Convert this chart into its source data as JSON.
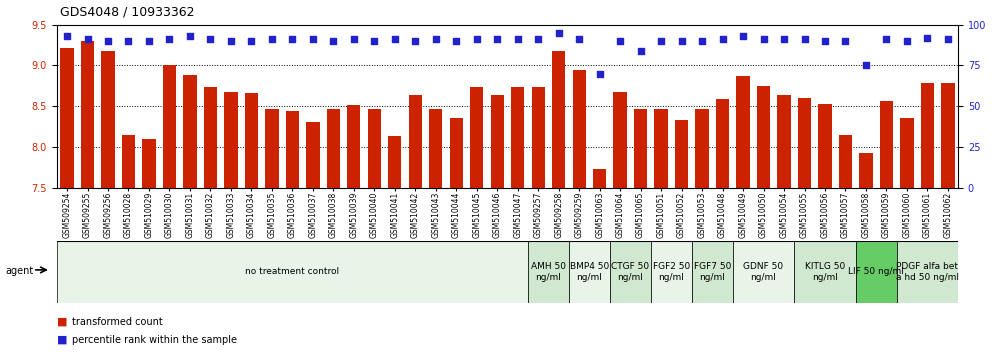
{
  "title": "GDS4048 / 10933362",
  "ylim_left": [
    7.5,
    9.5
  ],
  "ylim_right": [
    0,
    100
  ],
  "yticks_left": [
    7.5,
    8.0,
    8.5,
    9.0,
    9.5
  ],
  "yticks_right": [
    0,
    25,
    50,
    75,
    100
  ],
  "bar_color": "#cc2200",
  "dot_color": "#2222cc",
  "categories": [
    "GSM509254",
    "GSM509255",
    "GSM509256",
    "GSM510028",
    "GSM510029",
    "GSM510030",
    "GSM510031",
    "GSM510032",
    "GSM510033",
    "GSM510034",
    "GSM510035",
    "GSM510036",
    "GSM510037",
    "GSM510038",
    "GSM510039",
    "GSM510040",
    "GSM510041",
    "GSM510042",
    "GSM510043",
    "GSM510044",
    "GSM510045",
    "GSM510046",
    "GSM510047",
    "GSM509257",
    "GSM509258",
    "GSM509259",
    "GSM510063",
    "GSM510064",
    "GSM510065",
    "GSM510051",
    "GSM510052",
    "GSM510053",
    "GSM510048",
    "GSM510049",
    "GSM510050",
    "GSM510054",
    "GSM510055",
    "GSM510056",
    "GSM510057",
    "GSM510058",
    "GSM510059",
    "GSM510060",
    "GSM510061",
    "GSM510062"
  ],
  "bar_values": [
    9.22,
    9.3,
    9.18,
    8.15,
    8.1,
    9.01,
    8.88,
    8.73,
    8.68,
    8.66,
    8.47,
    8.44,
    8.3,
    8.47,
    8.52,
    8.47,
    8.13,
    8.64,
    8.47,
    8.35,
    8.73,
    8.64,
    8.74,
    8.74,
    9.18,
    8.95,
    7.73,
    8.68,
    8.47,
    8.47,
    8.33,
    8.47,
    8.59,
    8.87,
    8.75,
    8.64,
    8.6,
    8.53,
    8.15,
    7.93,
    8.57,
    8.35,
    8.78,
    8.78
  ],
  "dot_values_pct": [
    93,
    91,
    90,
    90,
    90,
    91,
    93,
    91,
    90,
    90,
    91,
    91,
    91,
    90,
    91,
    90,
    91,
    90,
    91,
    90,
    91,
    91,
    91,
    91,
    95,
    91,
    70,
    90,
    84,
    90,
    90,
    90,
    91,
    93,
    91,
    91,
    91,
    90,
    90,
    75,
    91,
    90,
    92,
    91
  ],
  "agent_groups": [
    {
      "label": "no treatment control",
      "start": 0,
      "end": 23,
      "color": "#e8f4e8"
    },
    {
      "label": "AMH 50\nng/ml",
      "start": 23,
      "end": 25,
      "color": "#d0e8d0"
    },
    {
      "label": "BMP4 50\nng/ml",
      "start": 25,
      "end": 27,
      "color": "#e8f4e8"
    },
    {
      "label": "CTGF 50\nng/ml",
      "start": 27,
      "end": 29,
      "color": "#d0e8d0"
    },
    {
      "label": "FGF2 50\nng/ml",
      "start": 29,
      "end": 31,
      "color": "#e8f4e8"
    },
    {
      "label": "FGF7 50\nng/ml",
      "start": 31,
      "end": 33,
      "color": "#d0e8d0"
    },
    {
      "label": "GDNF 50\nng/ml",
      "start": 33,
      "end": 36,
      "color": "#e8f4e8"
    },
    {
      "label": "KITLG 50\nng/ml",
      "start": 36,
      "end": 39,
      "color": "#d0e8d0"
    },
    {
      "label": "LIF 50 ng/ml",
      "start": 39,
      "end": 41,
      "color": "#66cc66"
    },
    {
      "label": "PDGF alfa bet\na hd 50 ng/ml",
      "start": 41,
      "end": 44,
      "color": "#d0e8d0"
    }
  ],
  "gridline_color": "#000000",
  "tick_label_size": 5.5,
  "bar_width": 0.65,
  "agent_label_size": 6.5,
  "xticklabel_bg": "#d8d8d8"
}
